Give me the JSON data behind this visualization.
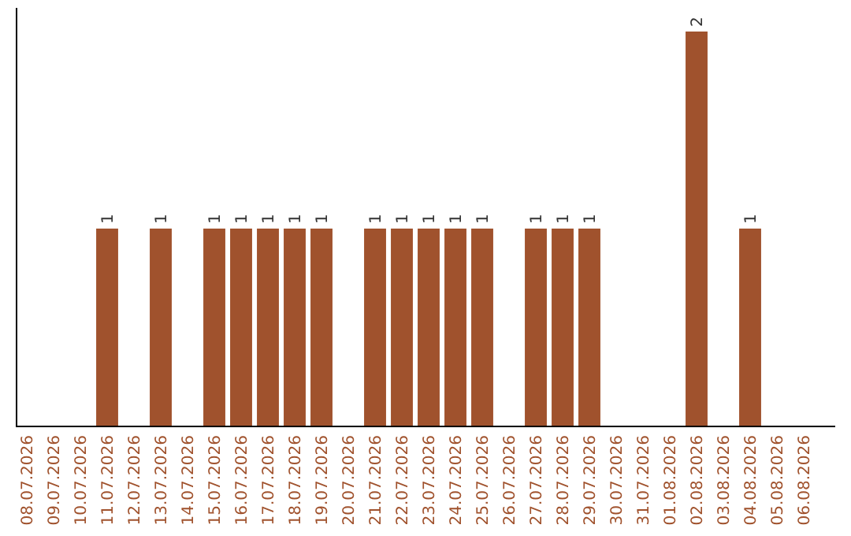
{
  "chart_data": {
    "type": "bar",
    "categories": [
      "08.07.2026",
      "09.07.2026",
      "10.07.2026",
      "11.07.2026",
      "12.07.2026",
      "13.07.2026",
      "14.07.2026",
      "15.07.2026",
      "16.07.2026",
      "17.07.2026",
      "18.07.2026",
      "19.07.2026",
      "20.07.2026",
      "21.07.2026",
      "22.07.2026",
      "23.07.2026",
      "24.07.2026",
      "25.07.2026",
      "26.07.2026",
      "27.07.2026",
      "28.07.2026",
      "29.07.2026",
      "30.07.2026",
      "31.07.2026",
      "01.08.2026",
      "02.08.2026",
      "03.08.2026",
      "04.08.2026",
      "05.08.2026",
      "06.08.2026"
    ],
    "values": [
      0,
      0,
      0,
      1,
      0,
      1,
      0,
      1,
      1,
      1,
      1,
      1,
      0,
      1,
      1,
      1,
      1,
      1,
      0,
      1,
      1,
      1,
      0,
      0,
      0,
      2,
      0,
      1,
      0,
      0
    ],
    "value_labels": [
      null,
      null,
      null,
      "1",
      null,
      "1",
      null,
      "1",
      "1",
      "1",
      "1",
      "1",
      null,
      "1",
      "1",
      "1",
      "1",
      "1",
      null,
      "1",
      "1",
      "1",
      null,
      null,
      null,
      "2",
      null,
      "1",
      null,
      null
    ],
    "color": "#a0522d",
    "tick_labels": "x",
    "grid": false,
    "legend": false
  }
}
